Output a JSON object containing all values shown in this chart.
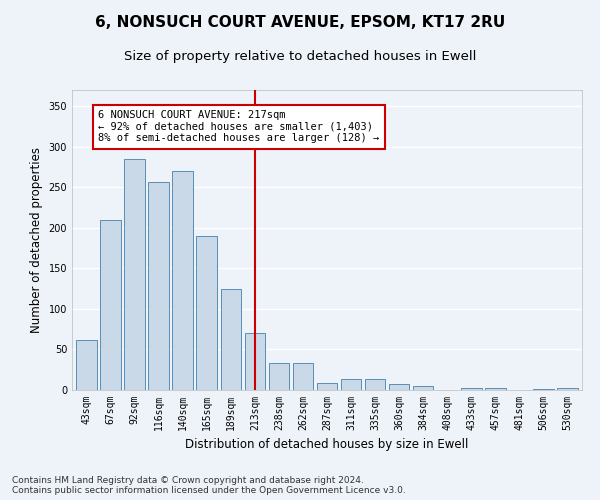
{
  "title": "6, NONSUCH COURT AVENUE, EPSOM, KT17 2RU",
  "subtitle": "Size of property relative to detached houses in Ewell",
  "xlabel": "Distribution of detached houses by size in Ewell",
  "ylabel": "Number of detached properties",
  "categories": [
    "43sqm",
    "67sqm",
    "92sqm",
    "116sqm",
    "140sqm",
    "165sqm",
    "189sqm",
    "213sqm",
    "238sqm",
    "262sqm",
    "287sqm",
    "311sqm",
    "335sqm",
    "360sqm",
    "384sqm",
    "408sqm",
    "433sqm",
    "457sqm",
    "481sqm",
    "506sqm",
    "530sqm"
  ],
  "values": [
    62,
    210,
    285,
    257,
    270,
    190,
    125,
    70,
    33,
    33,
    9,
    14,
    14,
    7,
    5,
    0,
    2,
    2,
    0,
    1,
    2
  ],
  "bar_color": "#c9d9e8",
  "bar_edge_color": "#5a8db5",
  "vline_x_index": 7,
  "vline_label": "6 NONSUCH COURT AVENUE: 217sqm",
  "annotation_line1": "← 92% of detached houses are smaller (1,403)",
  "annotation_line2": "8% of semi-detached houses are larger (128) →",
  "annotation_box_color": "#ffffff",
  "annotation_box_edge_color": "#cc0000",
  "vline_color": "#cc0000",
  "ylim": [
    0,
    370
  ],
  "yticks": [
    0,
    50,
    100,
    150,
    200,
    250,
    300,
    350
  ],
  "footer1": "Contains HM Land Registry data © Crown copyright and database right 2024.",
  "footer2": "Contains public sector information licensed under the Open Government Licence v3.0.",
  "background_color": "#eef2f9",
  "grid_color": "#ffffff",
  "title_fontsize": 11,
  "subtitle_fontsize": 9.5,
  "axis_label_fontsize": 8.5,
  "tick_fontsize": 7,
  "annotation_fontsize": 7.5,
  "footer_fontsize": 6.5
}
